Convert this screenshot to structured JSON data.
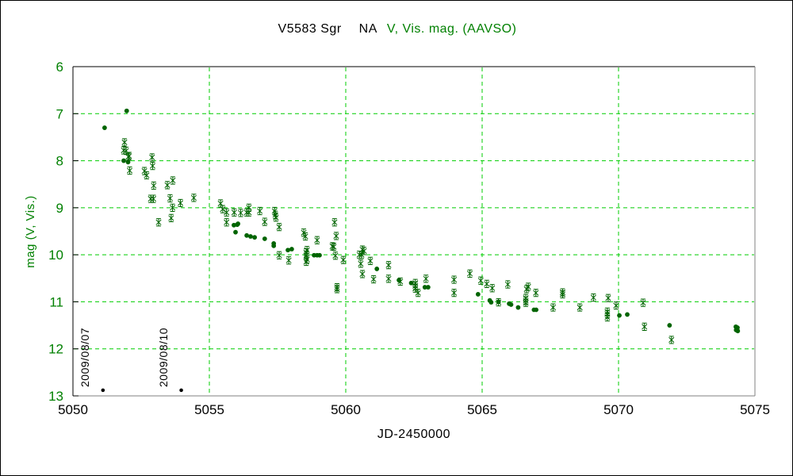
{
  "colors": {
    "background": "#ffffff",
    "grid_green": "#00ce00",
    "label_green": "#008000",
    "data_green": "#006400",
    "text_black": "#000000",
    "border_dark": "#000000",
    "border_light": "#808080"
  },
  "chart_data": {
    "type": "scatter",
    "title": "V5583 Sgr    NA    V, Vis. mag. (AAVSO)",
    "title_parts": {
      "star_name": "V5583 Sgr",
      "nova_type": "NA",
      "series_label": "V, Vis. mag. (AAVSO)"
    },
    "xlabel": "JD-2450000",
    "ylabel": "mag (V, Vis.)",
    "xlim": [
      5050,
      5075
    ],
    "ylim": [
      13,
      6
    ],
    "y_inverted": true,
    "grid": true,
    "x_ticks": [
      5050,
      5055,
      5060,
      5065,
      5070,
      5075
    ],
    "y_ticks": [
      6,
      7,
      8,
      9,
      10,
      11,
      12,
      13
    ],
    "series": [
      {
        "name": "Vis. mag (asterisk markers)",
        "marker": "asterisk",
        "color": "#006400",
        "points": [
          [
            5051.89,
            7.61
          ],
          [
            5051.86,
            7.78
          ],
          [
            5051.95,
            7.79
          ],
          [
            5052.03,
            7.92
          ],
          [
            5052.06,
            7.9
          ],
          [
            5052.08,
            8.21
          ],
          [
            5052.62,
            8.22
          ],
          [
            5052.7,
            8.31
          ],
          [
            5052.9,
            7.93
          ],
          [
            5052.92,
            8.11
          ],
          [
            5052.96,
            8.53
          ],
          [
            5052.85,
            8.81
          ],
          [
            5052.95,
            8.81
          ],
          [
            5053.14,
            9.31
          ],
          [
            5053.46,
            8.52
          ],
          [
            5053.56,
            8.8
          ],
          [
            5053.6,
            9.22
          ],
          [
            5053.65,
            9.0
          ],
          [
            5053.66,
            8.42
          ],
          [
            5053.94,
            8.9
          ],
          [
            5054.43,
            8.79
          ],
          [
            5055.41,
            8.91
          ],
          [
            5055.49,
            9.03
          ],
          [
            5055.63,
            9.1
          ],
          [
            5055.63,
            9.31
          ],
          [
            5055.91,
            9.1
          ],
          [
            5056.15,
            9.11
          ],
          [
            5056.37,
            9.1
          ],
          [
            5056.45,
            9.0
          ],
          [
            5056.45,
            9.1
          ],
          [
            5056.85,
            9.07
          ],
          [
            5057.03,
            9.3
          ],
          [
            5057.39,
            9.07
          ],
          [
            5057.42,
            9.15
          ],
          [
            5057.44,
            9.21
          ],
          [
            5057.56,
            9.41
          ],
          [
            5057.56,
            10.01
          ],
          [
            5057.91,
            10.12
          ],
          [
            5058.46,
            9.53
          ],
          [
            5058.52,
            9.61
          ],
          [
            5058.55,
            9.95
          ],
          [
            5058.58,
            9.9
          ],
          [
            5058.55,
            10.02
          ],
          [
            5058.58,
            10.1
          ],
          [
            5058.55,
            10.15
          ],
          [
            5058.95,
            9.69
          ],
          [
            5059.51,
            9.82
          ],
          [
            5059.56,
            9.83
          ],
          [
            5059.59,
            9.31
          ],
          [
            5059.65,
            9.6
          ],
          [
            5059.62,
            10.02
          ],
          [
            5059.68,
            10.69
          ],
          [
            5059.68,
            10.73
          ],
          [
            5059.91,
            10.11
          ],
          [
            5060.5,
            10.0
          ],
          [
            5060.58,
            10.0
          ],
          [
            5060.61,
            9.89
          ],
          [
            5060.67,
            9.92
          ],
          [
            5060.55,
            10.19
          ],
          [
            5060.61,
            10.41
          ],
          [
            5060.9,
            10.13
          ],
          [
            5061.02,
            10.52
          ],
          [
            5061.57,
            10.22
          ],
          [
            5061.57,
            10.51
          ],
          [
            5062.0,
            10.57
          ],
          [
            5062.55,
            10.6
          ],
          [
            5062.55,
            10.66
          ],
          [
            5062.55,
            10.72
          ],
          [
            5062.65,
            10.81
          ],
          [
            5062.94,
            10.51
          ],
          [
            5063.97,
            10.53
          ],
          [
            5063.97,
            10.81
          ],
          [
            5064.55,
            10.4
          ],
          [
            5064.95,
            10.55
          ],
          [
            5065.17,
            10.62
          ],
          [
            5065.37,
            10.71
          ],
          [
            5065.6,
            11.01
          ],
          [
            5065.94,
            10.63
          ],
          [
            5066.63,
            10.73
          ],
          [
            5066.69,
            10.68
          ],
          [
            5066.6,
            10.92
          ],
          [
            5066.6,
            10.98
          ],
          [
            5066.6,
            11.02
          ],
          [
            5066.97,
            10.81
          ],
          [
            5067.6,
            11.12
          ],
          [
            5067.95,
            10.8
          ],
          [
            5067.95,
            10.84
          ],
          [
            5068.58,
            11.12
          ],
          [
            5069.08,
            10.91
          ],
          [
            5069.62,
            10.92
          ],
          [
            5069.59,
            11.21
          ],
          [
            5069.59,
            11.26
          ],
          [
            5069.59,
            11.33
          ],
          [
            5069.91,
            11.08
          ],
          [
            5070.9,
            11.02
          ],
          [
            5070.95,
            11.53
          ],
          [
            5071.94,
            11.81
          ]
        ]
      },
      {
        "name": "V mag (filled markers)",
        "marker": "dot",
        "color": "#006400",
        "points": [
          [
            5051.16,
            7.3
          ],
          [
            5051.97,
            6.94
          ],
          [
            5051.86,
            8.0
          ],
          [
            5052.02,
            8.03
          ],
          [
            5055.9,
            9.37
          ],
          [
            5056.02,
            9.36
          ],
          [
            5056.05,
            9.34
          ],
          [
            5055.96,
            9.52
          ],
          [
            5056.37,
            9.59
          ],
          [
            5056.51,
            9.61
          ],
          [
            5056.66,
            9.63
          ],
          [
            5057.03,
            9.66
          ],
          [
            5057.36,
            9.76
          ],
          [
            5057.36,
            9.81
          ],
          [
            5057.88,
            9.9
          ],
          [
            5058.02,
            9.88
          ],
          [
            5058.84,
            10.01
          ],
          [
            5058.95,
            10.01
          ],
          [
            5059.04,
            10.01
          ],
          [
            5061.14,
            10.3
          ],
          [
            5061.95,
            10.54
          ],
          [
            5062.4,
            10.6
          ],
          [
            5062.9,
            10.69
          ],
          [
            5063.02,
            10.69
          ],
          [
            5064.85,
            10.84
          ],
          [
            5065.28,
            10.97
          ],
          [
            5065.33,
            11.01
          ],
          [
            5065.6,
            11.0
          ],
          [
            5065.99,
            11.04
          ],
          [
            5066.06,
            11.06
          ],
          [
            5066.32,
            11.12
          ],
          [
            5066.9,
            11.17
          ],
          [
            5066.98,
            11.17
          ],
          [
            5070.03,
            11.29
          ],
          [
            5070.32,
            11.27
          ],
          [
            5071.87,
            11.5
          ],
          [
            5074.3,
            11.53
          ],
          [
            5074.36,
            11.55
          ],
          [
            5074.31,
            11.6
          ],
          [
            5074.37,
            11.62
          ]
        ]
      }
    ],
    "annotations": [
      {
        "label": "2009/08/07",
        "jd": 5051.1,
        "dot_mag": 12.88
      },
      {
        "label": "2009/08/10",
        "jd": 5053.97,
        "dot_mag": 12.88
      }
    ]
  }
}
